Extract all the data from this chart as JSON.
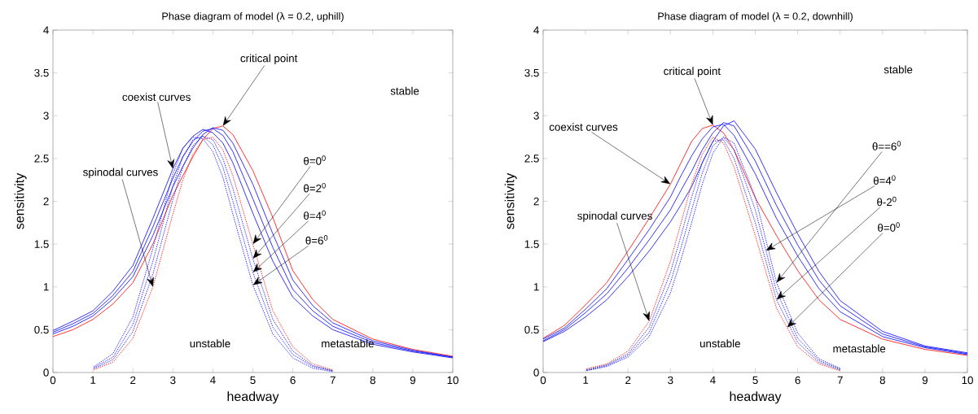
{
  "chart_data": [
    {
      "type": "line",
      "title": "Phase diagram of model (λ = 0.2, uphill)",
      "xlabel": "headway",
      "ylabel": "sensitivity",
      "x": [
        0,
        0.5,
        1,
        1.5,
        2,
        2.5,
        3,
        3.25,
        3.5,
        3.75,
        4,
        4.25,
        4.5,
        5,
        5.5,
        6,
        6.5,
        7,
        8,
        9,
        10
      ],
      "xlim": [
        0,
        10
      ],
      "ylim": [
        0,
        4
      ],
      "xticks": [
        0,
        1,
        2,
        3,
        4,
        5,
        6,
        7,
        8,
        9,
        10
      ],
      "yticks": [
        0,
        0.5,
        1,
        1.5,
        2,
        2.5,
        3,
        3.5,
        4
      ],
      "marker": "none",
      "series": [
        {
          "color": "#ff0000",
          "line_style": "solid",
          "values": [
            0.42,
            0.5,
            0.62,
            0.8,
            1.05,
            1.5,
            2.07,
            2.3,
            2.52,
            2.72,
            2.85,
            2.88,
            2.78,
            2.36,
            1.81,
            1.19,
            0.85,
            0.62,
            0.39,
            0.27,
            0.19
          ]
        },
        {
          "color": "#0000ff",
          "line_style": "solid",
          "values": [
            0.45,
            0.54,
            0.66,
            0.86,
            1.12,
            1.6,
            2.17,
            2.41,
            2.62,
            2.78,
            2.86,
            2.83,
            2.68,
            2.2,
            1.62,
            1.08,
            0.78,
            0.58,
            0.37,
            0.26,
            0.18
          ]
        },
        {
          "color": "#0000ff",
          "line_style": "solid",
          "values": [
            0.47,
            0.57,
            0.69,
            0.9,
            1.18,
            1.7,
            2.27,
            2.52,
            2.7,
            2.82,
            2.85,
            2.77,
            2.58,
            2.03,
            1.46,
            0.97,
            0.72,
            0.54,
            0.35,
            0.25,
            0.18
          ]
        },
        {
          "color": "#0000ff",
          "line_style": "solid",
          "values": [
            0.49,
            0.6,
            0.72,
            0.95,
            1.25,
            1.8,
            2.38,
            2.62,
            2.76,
            2.84,
            2.8,
            2.68,
            2.45,
            1.86,
            1.3,
            0.88,
            0.66,
            0.5,
            0.33,
            0.24,
            0.17
          ]
        },
        {
          "color": "#0000ff",
          "line_style": "dotted",
          "values": [
            null,
            null,
            0.04,
            0.15,
            0.48,
            1.15,
            2.02,
            2.4,
            2.65,
            2.76,
            2.72,
            2.5,
            2.15,
            1.33,
            0.62,
            0.25,
            0.08,
            0.02,
            null,
            null,
            null
          ]
        },
        {
          "color": "#0000ff",
          "line_style": "dotted",
          "values": [
            null,
            null,
            0.05,
            0.18,
            0.56,
            1.3,
            2.18,
            2.52,
            2.72,
            2.76,
            2.66,
            2.4,
            2.0,
            1.17,
            0.53,
            0.21,
            0.07,
            0.02,
            null,
            null,
            null
          ]
        },
        {
          "color": "#0000ff",
          "line_style": "dotted",
          "values": [
            null,
            null,
            0.06,
            0.22,
            0.65,
            1.45,
            2.32,
            2.62,
            2.75,
            2.73,
            2.58,
            2.28,
            1.85,
            1.02,
            0.45,
            0.17,
            0.05,
            0.01,
            null,
            null,
            null
          ]
        },
        {
          "color": "#ff0000",
          "line_style": "dotted",
          "values": [
            null,
            null,
            0.03,
            0.12,
            0.4,
            1.0,
            1.85,
            2.25,
            2.55,
            2.72,
            2.75,
            2.6,
            2.3,
            1.5,
            0.72,
            0.3,
            0.1,
            0.03,
            null,
            null,
            null
          ]
        }
      ],
      "annotations": [
        {
          "text": "critical point",
          "x": 4.25,
          "y": 2.88
        },
        {
          "text": "coexist curves",
          "x": 3,
          "y": 2.38
        },
        {
          "text": "spinodal curves",
          "x": 2.5,
          "y": 1.0
        },
        {
          "text": "θ=0$^{0}$",
          "x": 5,
          "y": 1.5
        },
        {
          "text": "θ=2$^{0}$",
          "x": 5,
          "y": 1.33
        },
        {
          "text": "θ=4$^{0}$",
          "x": 5,
          "y": 1.17
        },
        {
          "text": "θ=6$^{0}$",
          "x": 5,
          "y": 1.02
        },
        "stable",
        "unstable",
        "metastable"
      ]
    },
    {
      "type": "line",
      "title": "Phase diagram of model (λ = 0.2, downhill)",
      "xlabel": "headway",
      "ylabel": "sensitivity",
      "x": [
        0,
        0.5,
        1,
        1.5,
        2,
        2.5,
        3,
        3.25,
        3.5,
        3.75,
        4,
        4.25,
        4.5,
        5,
        5.5,
        6,
        6.5,
        7,
        8,
        9,
        10
      ],
      "xlim": [
        0,
        10
      ],
      "ylim": [
        0,
        4
      ],
      "xticks": [
        0,
        1,
        2,
        3,
        4,
        5,
        6,
        7,
        8,
        9,
        10
      ],
      "yticks": [
        0,
        0.5,
        1,
        1.5,
        2,
        2.5,
        3,
        3.5,
        4
      ],
      "marker": "none",
      "series": [
        {
          "color": "#ff0000",
          "line_style": "solid",
          "values": [
            0.4,
            0.55,
            0.79,
            1.05,
            1.42,
            1.8,
            2.2,
            2.45,
            2.7,
            2.85,
            2.89,
            2.8,
            2.6,
            2.04,
            1.6,
            1.19,
            0.85,
            0.62,
            0.39,
            0.27,
            0.2
          ]
        },
        {
          "color": "#0000ff",
          "line_style": "solid",
          "values": [
            0.39,
            0.52,
            0.74,
            0.98,
            1.32,
            1.67,
            2.05,
            2.3,
            2.53,
            2.73,
            2.87,
            2.9,
            2.77,
            2.32,
            1.8,
            1.36,
            0.98,
            0.71,
            0.42,
            0.29,
            0.21
          ]
        },
        {
          "color": "#0000ff",
          "line_style": "solid",
          "values": [
            0.37,
            0.5,
            0.7,
            0.92,
            1.22,
            1.55,
            1.9,
            2.13,
            2.35,
            2.6,
            2.8,
            2.92,
            2.88,
            2.47,
            1.95,
            1.49,
            1.08,
            0.78,
            0.45,
            0.3,
            0.22
          ]
        },
        {
          "color": "#0000ff",
          "line_style": "solid",
          "values": [
            0.36,
            0.48,
            0.65,
            0.85,
            1.12,
            1.42,
            1.76,
            1.96,
            2.17,
            2.45,
            2.7,
            2.88,
            2.94,
            2.61,
            2.1,
            1.62,
            1.18,
            0.84,
            0.48,
            0.31,
            0.23
          ]
        },
        {
          "color": "#0000ff",
          "line_style": "dotted",
          "values": [
            null,
            null,
            0.03,
            0.09,
            0.22,
            0.53,
            1.17,
            1.6,
            2.05,
            2.45,
            2.7,
            2.72,
            2.5,
            1.75,
            0.85,
            0.35,
            0.12,
            0.03,
            null,
            null,
            null
          ]
        },
        {
          "color": "#0000ff",
          "line_style": "dotted",
          "values": [
            null,
            null,
            0.02,
            0.08,
            0.2,
            0.47,
            1.05,
            1.46,
            1.9,
            2.33,
            2.65,
            2.75,
            2.6,
            1.9,
            0.95,
            0.4,
            0.14,
            0.04,
            null,
            null,
            null
          ]
        },
        {
          "color": "#0000ff",
          "line_style": "dotted",
          "values": [
            null,
            null,
            0.02,
            0.07,
            0.18,
            0.42,
            0.93,
            1.32,
            1.75,
            2.2,
            2.56,
            2.75,
            2.68,
            2.05,
            1.05,
            0.46,
            0.16,
            0.05,
            null,
            null,
            null
          ]
        },
        {
          "color": "#ff0000",
          "line_style": "dotted",
          "values": [
            null,
            null,
            0.04,
            0.1,
            0.25,
            0.6,
            1.3,
            1.75,
            2.2,
            2.55,
            2.75,
            2.68,
            2.4,
            1.6,
            0.75,
            0.3,
            0.1,
            0.02,
            null,
            null,
            null
          ]
        }
      ],
      "annotations": [
        {
          "text": "critical point",
          "x": 4,
          "y": 2.89
        },
        {
          "text": "coexist curves",
          "x": 3,
          "y": 2.2
        },
        {
          "text": "spinodal curves",
          "x": 2.5,
          "y": 0.6
        },
        {
          "text": "θ==6$^{0}$",
          "x": 5.5,
          "y": 1.05
        },
        {
          "text": "θ=4$^{0}$",
          "x": 5.25,
          "y": 1.425
        },
        {
          "text": "θ-2$^{0}$",
          "x": 5.5,
          "y": 0.85
        },
        {
          "text": "θ=0$^{0}$",
          "x": 5.75,
          "y": 0.525
        },
        "stable",
        "unstable",
        "metastable"
      ]
    }
  ]
}
